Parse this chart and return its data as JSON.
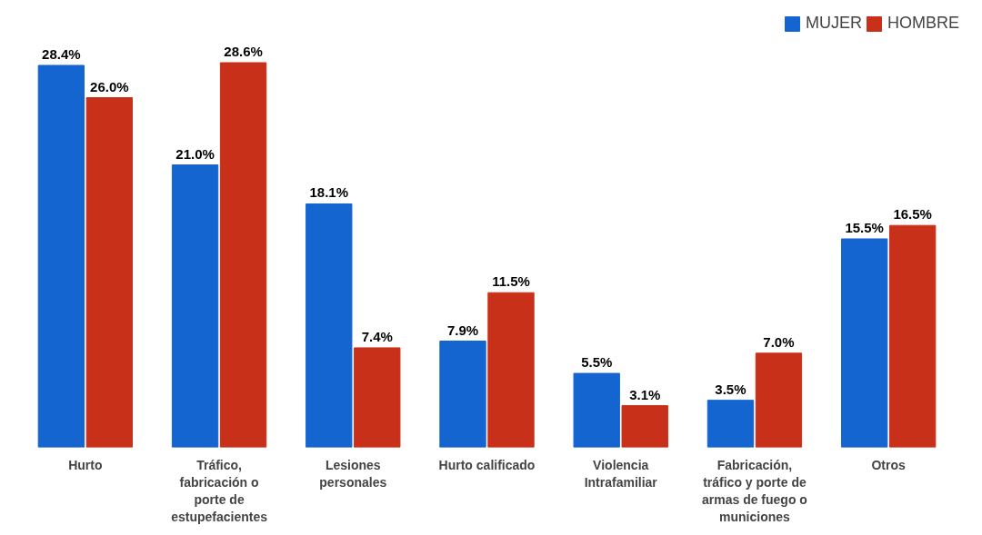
{
  "chart_data": {
    "type": "bar",
    "categories": [
      "Hurto",
      "Tráfico, fabricación o porte de estupefacientes",
      "Lesiones personales",
      "Hurto calificado",
      "Violencia Intrafamiliar",
      "Fabricación, tráfico y porte de armas de fuego o municiones",
      "Otros"
    ],
    "series": [
      {
        "name": "MUJER",
        "color": "#1565d0",
        "values": [
          28.4,
          21.0,
          18.1,
          7.9,
          5.5,
          3.5,
          15.5
        ],
        "value_labels": [
          "28.4%",
          "21.0%",
          "18.1%",
          "7.9%",
          "5.5%",
          "3.5%",
          "15.5%"
        ]
      },
      {
        "name": "HOMBRE",
        "color": "#c8301a",
        "values": [
          26.0,
          28.6,
          7.4,
          11.5,
          3.1,
          7.0,
          16.5
        ],
        "value_labels": [
          "26.0%",
          "28.6%",
          "7.4%",
          "11.5%",
          "3.1%",
          "7.0%",
          "16.5%"
        ]
      }
    ],
    "legend": "top right",
    "grid": false
  }
}
